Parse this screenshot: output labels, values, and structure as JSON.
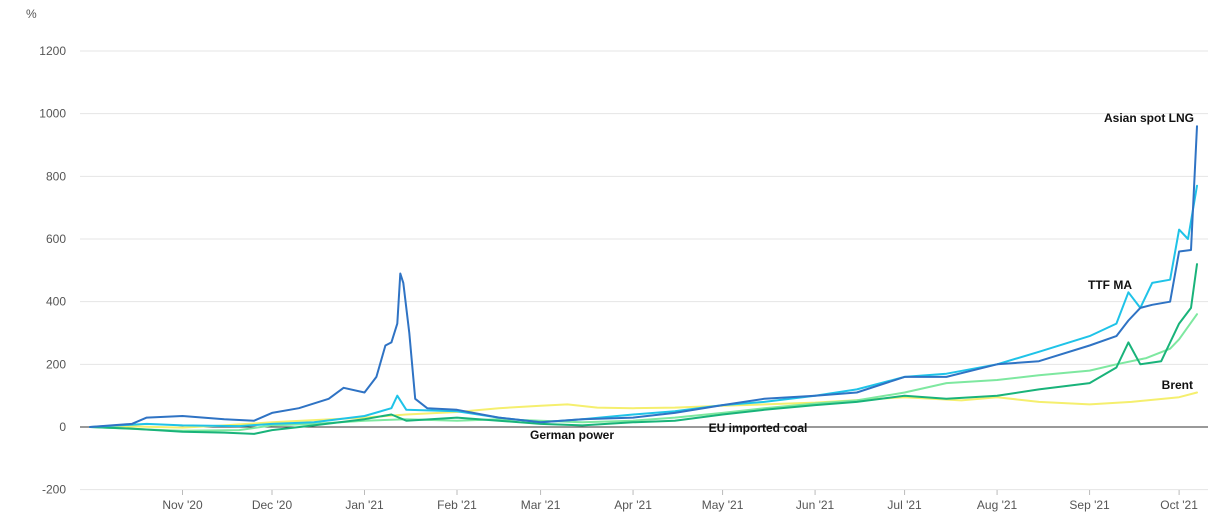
{
  "chart_data": {
    "type": "line",
    "title": "",
    "ylabel": "%",
    "xlabel": "",
    "ylim": [
      -200,
      1200
    ],
    "yticks": [
      1200,
      1000,
      800,
      600,
      400,
      200,
      0,
      -200
    ],
    "xlim": [
      "2020-10-01",
      "2021-10-07"
    ],
    "xticks": [
      {
        "date": "2020-11-01",
        "label": "Nov '20"
      },
      {
        "date": "2020-12-01",
        "label": "Dec '20"
      },
      {
        "date": "2021-01-01",
        "label": "Jan '21"
      },
      {
        "date": "2021-02-01",
        "label": "Feb '21"
      },
      {
        "date": "2021-03-01",
        "label": "Mar '21"
      },
      {
        "date": "2021-04-01",
        "label": "Apr '21"
      },
      {
        "date": "2021-05-01",
        "label": "May '21"
      },
      {
        "date": "2021-06-01",
        "label": "Jun '21"
      },
      {
        "date": "2021-07-01",
        "label": "Jul '21"
      },
      {
        "date": "2021-08-01",
        "label": "Aug '21"
      },
      {
        "date": "2021-09-01",
        "label": "Sep '21"
      },
      {
        "date": "2021-10-01",
        "label": "Oct '21"
      }
    ],
    "grid": true,
    "series": [
      {
        "name": "Brent",
        "color": "#f5ef6e",
        "points": [
          [
            "2020-10-01",
            0
          ],
          [
            "2020-10-15",
            2
          ],
          [
            "2020-11-01",
            -2
          ],
          [
            "2020-11-15",
            5
          ],
          [
            "2020-12-01",
            15
          ],
          [
            "2020-12-15",
            22
          ],
          [
            "2021-01-01",
            30
          ],
          [
            "2021-01-15",
            40
          ],
          [
            "2021-02-01",
            48
          ],
          [
            "2021-02-15",
            60
          ],
          [
            "2021-03-01",
            68
          ],
          [
            "2021-03-10",
            72
          ],
          [
            "2021-03-20",
            62
          ],
          [
            "2021-04-01",
            60
          ],
          [
            "2021-04-15",
            62
          ],
          [
            "2021-05-01",
            68
          ],
          [
            "2021-05-15",
            72
          ],
          [
            "2021-06-01",
            78
          ],
          [
            "2021-06-15",
            86
          ],
          [
            "2021-07-01",
            95
          ],
          [
            "2021-07-20",
            85
          ],
          [
            "2021-08-01",
            95
          ],
          [
            "2021-08-15",
            80
          ],
          [
            "2021-09-01",
            72
          ],
          [
            "2021-09-15",
            80
          ],
          [
            "2021-10-01",
            95
          ],
          [
            "2021-10-07",
            110
          ]
        ]
      },
      {
        "name": "EU imported coal",
        "color": "#7ee8a0",
        "points": [
          [
            "2020-10-01",
            0
          ],
          [
            "2020-10-20",
            -8
          ],
          [
            "2020-11-01",
            -12
          ],
          [
            "2020-11-20",
            -10
          ],
          [
            "2020-12-01",
            5
          ],
          [
            "2020-12-15",
            10
          ],
          [
            "2021-01-01",
            20
          ],
          [
            "2021-01-15",
            25
          ],
          [
            "2021-02-01",
            20
          ],
          [
            "2021-02-15",
            25
          ],
          [
            "2021-03-01",
            20
          ],
          [
            "2021-03-15",
            15
          ],
          [
            "2021-04-01",
            20
          ],
          [
            "2021-04-15",
            30
          ],
          [
            "2021-05-01",
            45
          ],
          [
            "2021-05-15",
            60
          ],
          [
            "2021-06-01",
            75
          ],
          [
            "2021-06-15",
            85
          ],
          [
            "2021-07-01",
            110
          ],
          [
            "2021-07-15",
            140
          ],
          [
            "2021-08-01",
            150
          ],
          [
            "2021-08-15",
            165
          ],
          [
            "2021-09-01",
            180
          ],
          [
            "2021-09-10",
            200
          ],
          [
            "2021-09-20",
            220
          ],
          [
            "2021-09-28",
            250
          ],
          [
            "2021-10-01",
            280
          ],
          [
            "2021-10-07",
            360
          ]
        ]
      },
      {
        "name": "German power",
        "color": "#19b37a",
        "points": [
          [
            "2020-10-01",
            0
          ],
          [
            "2020-10-15",
            -5
          ],
          [
            "2020-11-01",
            -15
          ],
          [
            "2020-11-15",
            -18
          ],
          [
            "2020-11-25",
            -22
          ],
          [
            "2020-12-01",
            -10
          ],
          [
            "2020-12-15",
            5
          ],
          [
            "2021-01-01",
            25
          ],
          [
            "2021-01-10",
            40
          ],
          [
            "2021-01-15",
            20
          ],
          [
            "2021-02-01",
            30
          ],
          [
            "2021-02-15",
            20
          ],
          [
            "2021-03-01",
            10
          ],
          [
            "2021-03-15",
            5
          ],
          [
            "2021-04-01",
            15
          ],
          [
            "2021-04-15",
            20
          ],
          [
            "2021-05-01",
            40
          ],
          [
            "2021-05-15",
            55
          ],
          [
            "2021-06-01",
            70
          ],
          [
            "2021-06-15",
            80
          ],
          [
            "2021-07-01",
            100
          ],
          [
            "2021-07-15",
            90
          ],
          [
            "2021-08-01",
            100
          ],
          [
            "2021-08-15",
            120
          ],
          [
            "2021-09-01",
            140
          ],
          [
            "2021-09-10",
            190
          ],
          [
            "2021-09-14",
            270
          ],
          [
            "2021-09-18",
            200
          ],
          [
            "2021-09-25",
            210
          ],
          [
            "2021-10-01",
            330
          ],
          [
            "2021-10-05",
            380
          ],
          [
            "2021-10-07",
            520
          ]
        ]
      },
      {
        "name": "TTF MA",
        "color": "#1fc3e8",
        "points": [
          [
            "2020-10-01",
            0
          ],
          [
            "2020-10-20",
            10
          ],
          [
            "2020-11-01",
            5
          ],
          [
            "2020-11-20",
            3
          ],
          [
            "2020-12-01",
            10
          ],
          [
            "2020-12-15",
            15
          ],
          [
            "2021-01-01",
            35
          ],
          [
            "2021-01-10",
            60
          ],
          [
            "2021-01-12",
            100
          ],
          [
            "2021-01-15",
            55
          ],
          [
            "2021-02-01",
            50
          ],
          [
            "2021-02-15",
            30
          ],
          [
            "2021-03-01",
            15
          ],
          [
            "2021-03-15",
            25
          ],
          [
            "2021-04-01",
            40
          ],
          [
            "2021-04-15",
            50
          ],
          [
            "2021-05-01",
            70
          ],
          [
            "2021-05-15",
            80
          ],
          [
            "2021-06-01",
            100
          ],
          [
            "2021-06-15",
            120
          ],
          [
            "2021-07-01",
            160
          ],
          [
            "2021-07-15",
            170
          ],
          [
            "2021-08-01",
            200
          ],
          [
            "2021-08-15",
            240
          ],
          [
            "2021-09-01",
            290
          ],
          [
            "2021-09-10",
            330
          ],
          [
            "2021-09-14",
            430
          ],
          [
            "2021-09-18",
            380
          ],
          [
            "2021-09-22",
            460
          ],
          [
            "2021-09-28",
            470
          ],
          [
            "2021-10-01",
            630
          ],
          [
            "2021-10-04",
            600
          ],
          [
            "2021-10-07",
            770
          ]
        ]
      },
      {
        "name": "Asian spot LNG",
        "color": "#2f73c4",
        "points": [
          [
            "2020-10-01",
            0
          ],
          [
            "2020-10-15",
            10
          ],
          [
            "2020-10-20",
            30
          ],
          [
            "2020-11-01",
            35
          ],
          [
            "2020-11-15",
            25
          ],
          [
            "2020-11-25",
            20
          ],
          [
            "2020-12-01",
            45
          ],
          [
            "2020-12-10",
            60
          ],
          [
            "2020-12-20",
            90
          ],
          [
            "2020-12-25",
            125
          ],
          [
            "2021-01-01",
            110
          ],
          [
            "2021-01-05",
            160
          ],
          [
            "2021-01-08",
            260
          ],
          [
            "2021-01-10",
            270
          ],
          [
            "2021-01-12",
            330
          ],
          [
            "2021-01-13",
            490
          ],
          [
            "2021-01-14",
            460
          ],
          [
            "2021-01-16",
            300
          ],
          [
            "2021-01-18",
            90
          ],
          [
            "2021-01-22",
            60
          ],
          [
            "2021-02-01",
            55
          ],
          [
            "2021-02-15",
            30
          ],
          [
            "2021-03-01",
            15
          ],
          [
            "2021-03-15",
            25
          ],
          [
            "2021-04-01",
            30
          ],
          [
            "2021-04-15",
            45
          ],
          [
            "2021-05-01",
            70
          ],
          [
            "2021-05-15",
            90
          ],
          [
            "2021-06-01",
            100
          ],
          [
            "2021-06-15",
            110
          ],
          [
            "2021-07-01",
            160
          ],
          [
            "2021-07-15",
            160
          ],
          [
            "2021-08-01",
            200
          ],
          [
            "2021-08-15",
            210
          ],
          [
            "2021-09-01",
            260
          ],
          [
            "2021-09-10",
            290
          ],
          [
            "2021-09-14",
            340
          ],
          [
            "2021-09-18",
            380
          ],
          [
            "2021-09-22",
            390
          ],
          [
            "2021-09-28",
            400
          ],
          [
            "2021-10-01",
            560
          ],
          [
            "2021-10-05",
            565
          ],
          [
            "2021-10-07",
            960
          ]
        ]
      }
    ],
    "series_labels": [
      {
        "text": "Asian spot LNG",
        "series": "Asian spot LNG"
      },
      {
        "text": "TTF MA",
        "series": "TTF MA"
      },
      {
        "text": "Brent",
        "series": "Brent"
      },
      {
        "text": "German power",
        "series": "German power"
      },
      {
        "text": "EU imported coal",
        "series": "EU imported coal"
      }
    ]
  }
}
